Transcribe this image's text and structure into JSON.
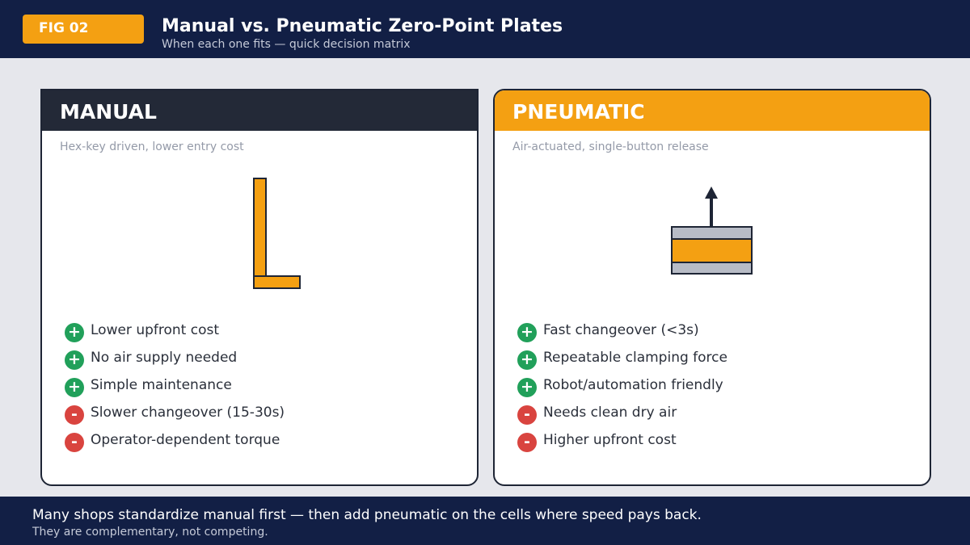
{
  "header": {
    "badge": "FIG 02",
    "title": "Manual vs. Pneumatic Zero-Point Plates",
    "subtitle": "When each one fits — quick decision matrix"
  },
  "panels": {
    "manual": {
      "heading": "MANUAL",
      "description": "Hex-key driven, lower entry cost",
      "illustration_icon": "hex-key-icon",
      "items": [
        {
          "type": "pro",
          "symbol": "+",
          "text": "Lower upfront cost"
        },
        {
          "type": "pro",
          "symbol": "+",
          "text": "No air supply needed"
        },
        {
          "type": "pro",
          "symbol": "+",
          "text": "Simple maintenance"
        },
        {
          "type": "con",
          "symbol": "-",
          "text": "Slower changeover (15-30s)"
        },
        {
          "type": "con",
          "symbol": "-",
          "text": "Operator-dependent torque"
        }
      ]
    },
    "pneumatic": {
      "heading": "PNEUMATIC",
      "description": "Air-actuated, single-button release",
      "illustration_icon": "pneumatic-cylinder-icon",
      "items": [
        {
          "type": "pro",
          "symbol": "+",
          "text": "Fast changeover (<3s)"
        },
        {
          "type": "pro",
          "symbol": "+",
          "text": "Repeatable clamping force"
        },
        {
          "type": "pro",
          "symbol": "+",
          "text": "Robot/automation friendly"
        },
        {
          "type": "con",
          "symbol": "-",
          "text": "Needs clean dry air"
        },
        {
          "type": "con",
          "symbol": "-",
          "text": "Higher upfront cost"
        }
      ]
    }
  },
  "footer": {
    "main": "Many shops standardize manual first — then add pneumatic on the cells where speed pays back.",
    "sub": "They are complementary, not competing."
  },
  "colors": {
    "navy": "#121f45",
    "accent_orange": "#f4a012",
    "dark_header": "#232937",
    "pro_green": "#21a05a",
    "con_red": "#d9443f",
    "cylinder_gray": "#b8bcc6"
  }
}
